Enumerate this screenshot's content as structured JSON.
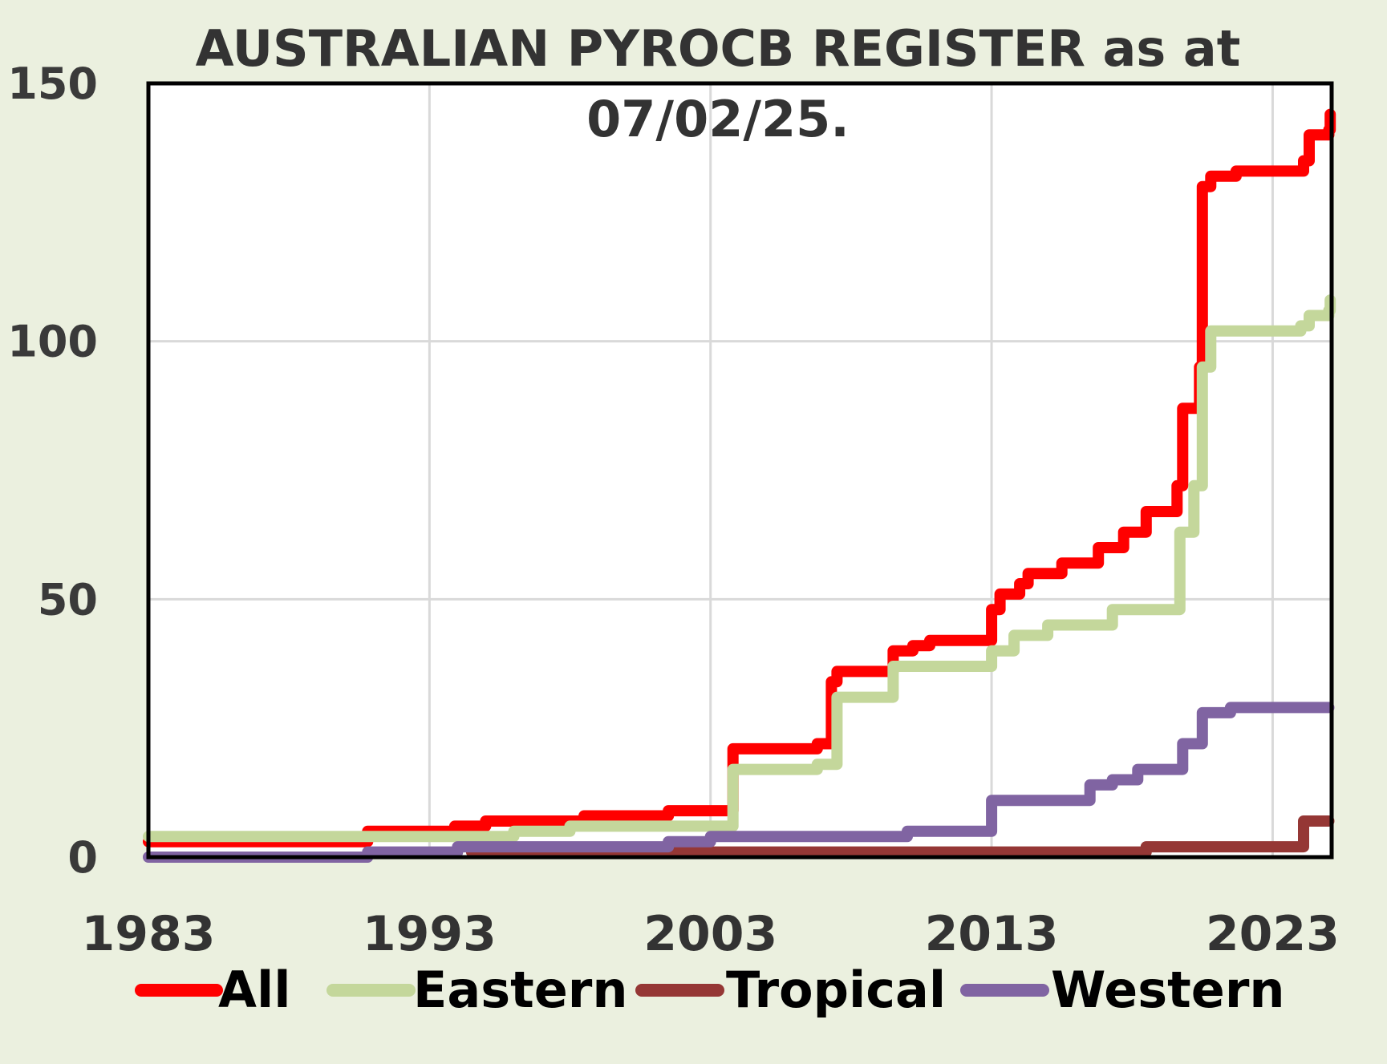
{
  "chart_data": {
    "type": "line",
    "title_line1": "AUSTRALIAN PYROCB REGISTER as at",
    "title_line2": "07/02/25.",
    "xlim": [
      1983,
      2025.1
    ],
    "ylim": [
      0,
      150
    ],
    "x_ticks": [
      "1983",
      "1993",
      "2003",
      "2013",
      "2023"
    ],
    "y_ticks": [
      "0",
      "50",
      "100",
      "150"
    ],
    "grid": true,
    "legend_position": "bottom",
    "step_style": "step-after",
    "series": [
      {
        "name": "All",
        "color": "#ff0000",
        "points": [
          [
            1983.0,
            3
          ],
          [
            1990.8,
            5
          ],
          [
            1993.9,
            6
          ],
          [
            1995.0,
            7
          ],
          [
            1998.5,
            8
          ],
          [
            2001.5,
            9
          ],
          [
            2003.8,
            21
          ],
          [
            2006.8,
            22
          ],
          [
            2007.3,
            34
          ],
          [
            2007.5,
            36
          ],
          [
            2009.5,
            40
          ],
          [
            2010.2,
            41
          ],
          [
            2010.8,
            42
          ],
          [
            2013.0,
            48
          ],
          [
            2013.3,
            51
          ],
          [
            2014.0,
            53
          ],
          [
            2014.3,
            55
          ],
          [
            2015.5,
            57
          ],
          [
            2016.8,
            60
          ],
          [
            2017.7,
            63
          ],
          [
            2018.5,
            67
          ],
          [
            2019.6,
            72
          ],
          [
            2019.8,
            87
          ],
          [
            2020.4,
            95
          ],
          [
            2020.5,
            130
          ],
          [
            2020.8,
            132
          ],
          [
            2021.7,
            133
          ],
          [
            2024.1,
            135
          ],
          [
            2024.3,
            140
          ],
          [
            2025.0,
            141
          ],
          [
            2025.05,
            144
          ]
        ]
      },
      {
        "name": "Eastern",
        "color": "#c4d79b",
        "points": [
          [
            1983.0,
            4
          ],
          [
            1994.5,
            4
          ],
          [
            1996.0,
            5
          ],
          [
            1998.0,
            6
          ],
          [
            2003.8,
            17
          ],
          [
            2006.8,
            18
          ],
          [
            2007.5,
            31
          ],
          [
            2009.5,
            37
          ],
          [
            2013.0,
            40
          ],
          [
            2013.8,
            43
          ],
          [
            2015.0,
            45
          ],
          [
            2017.3,
            48
          ],
          [
            2019.7,
            63
          ],
          [
            2020.2,
            72
          ],
          [
            2020.5,
            95
          ],
          [
            2020.8,
            102
          ],
          [
            2024.0,
            103
          ],
          [
            2024.3,
            105
          ],
          [
            2025.0,
            106
          ],
          [
            2025.05,
            108
          ]
        ]
      },
      {
        "name": "Tropical",
        "color": "#953735",
        "points": [
          [
            1994.5,
            1
          ],
          [
            2014.0,
            1
          ],
          [
            2018.5,
            2
          ],
          [
            2024.1,
            7
          ],
          [
            2025.0,
            7
          ]
        ]
      },
      {
        "name": "Western",
        "color": "#8064a2",
        "points": [
          [
            1983.0,
            0
          ],
          [
            1990.8,
            1
          ],
          [
            1994.0,
            2
          ],
          [
            2001.5,
            3
          ],
          [
            2003.0,
            4
          ],
          [
            2010.0,
            5
          ],
          [
            2013.0,
            11
          ],
          [
            2016.5,
            14
          ],
          [
            2017.3,
            15
          ],
          [
            2018.2,
            17
          ],
          [
            2019.8,
            22
          ],
          [
            2020.5,
            28
          ],
          [
            2021.5,
            29
          ],
          [
            2025.0,
            29
          ]
        ]
      }
    ]
  }
}
